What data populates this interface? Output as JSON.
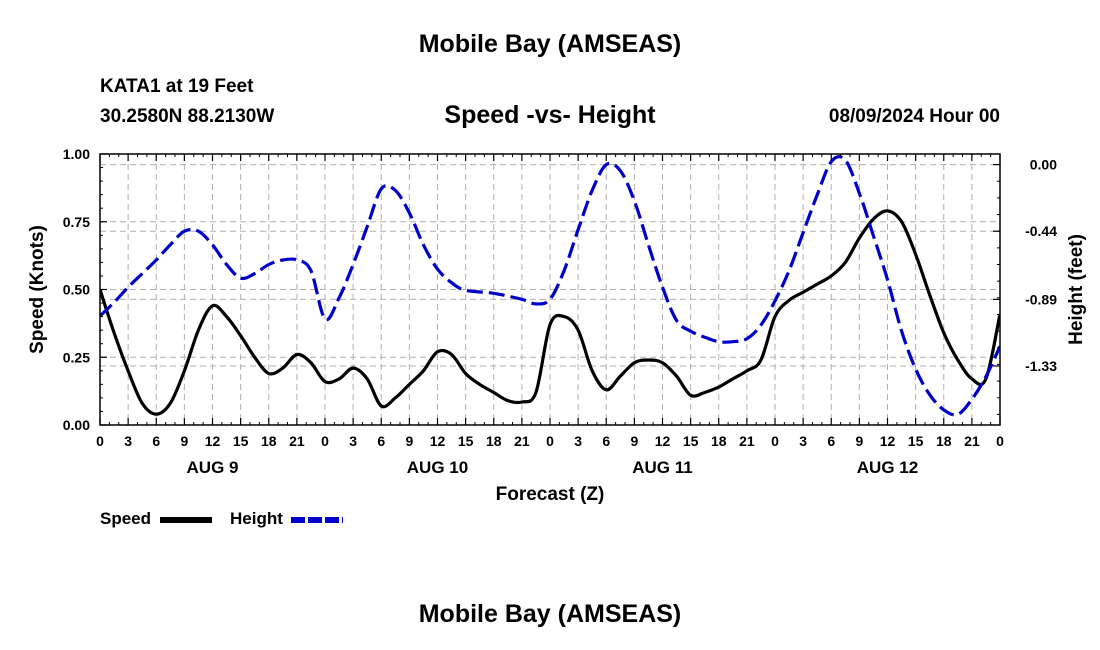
{
  "header": {
    "title": "Mobile Bay (AMSEAS)",
    "station": "KATA1 at 19 Feet",
    "coordinates": "30.2580N  88.2130W",
    "subtitle": "Speed -vs- Height",
    "datetime": "08/09/2024 Hour 00"
  },
  "footer": {
    "title": "Mobile Bay (AMSEAS)"
  },
  "colors": {
    "speed": "#000000",
    "height": "#0000cc",
    "grid": "#b0b0b0"
  },
  "chart_data": {
    "type": "line",
    "title": "Speed -vs- Height",
    "xlabel": "Forecast (Z)",
    "ylabel": "Speed (Knots)",
    "ylabel_right": "Height (feet)",
    "x_range_hours": [
      0,
      96
    ],
    "x_tick_step_hours": 3,
    "x_tick_labels": [
      "0",
      "3",
      "6",
      "9",
      "12",
      "15",
      "18",
      "21",
      "0",
      "3",
      "6",
      "9",
      "12",
      "15",
      "18",
      "21",
      "0",
      "3",
      "6",
      "9",
      "12",
      "15",
      "18",
      "21",
      "0",
      "3",
      "6",
      "9",
      "12",
      "15",
      "18",
      "21",
      "0"
    ],
    "day_labels": [
      {
        "label": "AUG 9",
        "hour": 12
      },
      {
        "label": "AUG 10",
        "hour": 36
      },
      {
        "label": "AUG 11",
        "hour": 60
      },
      {
        "label": "AUG 12",
        "hour": 84
      }
    ],
    "y_left": {
      "range": [
        0,
        1
      ],
      "ticks": [
        0,
        0.25,
        0.5,
        0.75,
        1.0
      ],
      "tick_labels": [
        "0.00",
        "0.25",
        "0.50",
        "0.75",
        "1.00"
      ]
    },
    "y_right": {
      "range": [
        -1.72,
        0.07
      ],
      "ticks": [
        0.0,
        -0.44,
        -0.89,
        -1.33
      ],
      "tick_labels": [
        "0.00",
        "-0.44",
        "-0.89",
        "-1.33"
      ]
    },
    "grid": true,
    "legend": {
      "position": "bottom-left"
    },
    "series": [
      {
        "name": "Speed",
        "axis": "left",
        "style": "solid",
        "points": [
          [
            0,
            0.5
          ],
          [
            1.5,
            0.34
          ],
          [
            3,
            0.2
          ],
          [
            4.5,
            0.08
          ],
          [
            6,
            0.04
          ],
          [
            7.5,
            0.08
          ],
          [
            9,
            0.2
          ],
          [
            10.5,
            0.35
          ],
          [
            12,
            0.44
          ],
          [
            13.5,
            0.4
          ],
          [
            15,
            0.33
          ],
          [
            16.5,
            0.25
          ],
          [
            18,
            0.19
          ],
          [
            19.5,
            0.21
          ],
          [
            21,
            0.26
          ],
          [
            22.5,
            0.23
          ],
          [
            24,
            0.16
          ],
          [
            25.5,
            0.17
          ],
          [
            27,
            0.21
          ],
          [
            28.5,
            0.17
          ],
          [
            30,
            0.07
          ],
          [
            31.5,
            0.1
          ],
          [
            33,
            0.15
          ],
          [
            34.5,
            0.2
          ],
          [
            36,
            0.27
          ],
          [
            37.5,
            0.26
          ],
          [
            39,
            0.19
          ],
          [
            40.5,
            0.15
          ],
          [
            42,
            0.12
          ],
          [
            43.5,
            0.09
          ],
          [
            45,
            0.085
          ],
          [
            46.5,
            0.12
          ],
          [
            48,
            0.37
          ],
          [
            49.5,
            0.4
          ],
          [
            51,
            0.35
          ],
          [
            52.5,
            0.2
          ],
          [
            54,
            0.13
          ],
          [
            55.5,
            0.18
          ],
          [
            57,
            0.23
          ],
          [
            58.5,
            0.24
          ],
          [
            60,
            0.23
          ],
          [
            61.5,
            0.18
          ],
          [
            63,
            0.11
          ],
          [
            64.5,
            0.12
          ],
          [
            66,
            0.14
          ],
          [
            67.5,
            0.17
          ],
          [
            69,
            0.2
          ],
          [
            70.5,
            0.24
          ],
          [
            72,
            0.4
          ],
          [
            73.5,
            0.46
          ],
          [
            75,
            0.49
          ],
          [
            76.5,
            0.52
          ],
          [
            78,
            0.55
          ],
          [
            79.5,
            0.6
          ],
          [
            81,
            0.69
          ],
          [
            82.5,
            0.76
          ],
          [
            84,
            0.79
          ],
          [
            85.5,
            0.75
          ],
          [
            87,
            0.63
          ],
          [
            88.5,
            0.48
          ],
          [
            90,
            0.34
          ],
          [
            91.5,
            0.24
          ],
          [
            93,
            0.17
          ],
          [
            94.5,
            0.17
          ],
          [
            96,
            0.41
          ]
        ]
      },
      {
        "name": "Height",
        "axis": "right",
        "style": "dashed",
        "points": [
          [
            0,
            -1.0
          ],
          [
            1.5,
            -0.91
          ],
          [
            3,
            -0.81
          ],
          [
            4.5,
            -0.72
          ],
          [
            6,
            -0.63
          ],
          [
            7.5,
            -0.53
          ],
          [
            9,
            -0.44
          ],
          [
            10.5,
            -0.44
          ],
          [
            12,
            -0.53
          ],
          [
            13.5,
            -0.66
          ],
          [
            15,
            -0.75
          ],
          [
            16.5,
            -0.72
          ],
          [
            18,
            -0.66
          ],
          [
            19.5,
            -0.63
          ],
          [
            21,
            -0.63
          ],
          [
            22.5,
            -0.7
          ],
          [
            24,
            -1.02
          ],
          [
            25.5,
            -0.88
          ],
          [
            27,
            -0.66
          ],
          [
            28.5,
            -0.41
          ],
          [
            30,
            -0.16
          ],
          [
            31.5,
            -0.17
          ],
          [
            33,
            -0.32
          ],
          [
            34.5,
            -0.53
          ],
          [
            36,
            -0.69
          ],
          [
            37.5,
            -0.78
          ],
          [
            39,
            -0.83
          ],
          [
            42,
            -0.85
          ],
          [
            45,
            -0.89
          ],
          [
            46.5,
            -0.92
          ],
          [
            48,
            -0.89
          ],
          [
            49.5,
            -0.7
          ],
          [
            51,
            -0.43
          ],
          [
            52.5,
            -0.17
          ],
          [
            54,
            0.0
          ],
          [
            55.5,
            -0.04
          ],
          [
            57,
            -0.24
          ],
          [
            58.5,
            -0.53
          ],
          [
            60,
            -0.81
          ],
          [
            61.5,
            -1.03
          ],
          [
            63,
            -1.1
          ],
          [
            64.5,
            -1.14
          ],
          [
            66,
            -1.17
          ],
          [
            67.5,
            -1.17
          ],
          [
            69,
            -1.15
          ],
          [
            70.5,
            -1.06
          ],
          [
            72,
            -0.9
          ],
          [
            73.5,
            -0.7
          ],
          [
            75,
            -0.45
          ],
          [
            76.5,
            -0.2
          ],
          [
            78,
            0.02
          ],
          [
            79.5,
            0.03
          ],
          [
            81,
            -0.19
          ],
          [
            82.5,
            -0.47
          ],
          [
            84,
            -0.76
          ],
          [
            85.5,
            -1.1
          ],
          [
            87,
            -1.35
          ],
          [
            88.5,
            -1.52
          ],
          [
            90,
            -1.62
          ],
          [
            91.5,
            -1.65
          ],
          [
            93,
            -1.55
          ],
          [
            94.5,
            -1.4
          ],
          [
            96,
            -1.2
          ]
        ]
      }
    ]
  }
}
